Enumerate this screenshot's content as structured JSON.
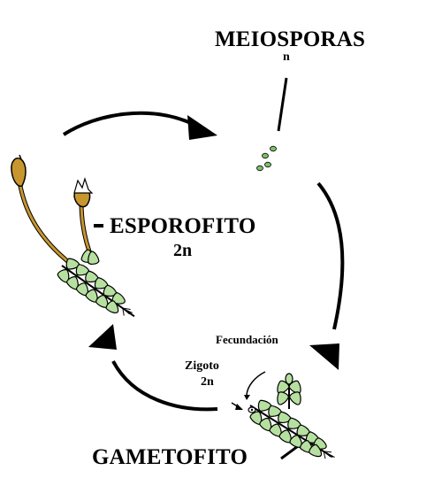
{
  "labels": {
    "meiosporas": "MEIOSPORAS",
    "meiosporas_ploidy": "n",
    "esporofito": "ESPOROFITO",
    "esporofito_ploidy": "2n",
    "fecundacion": "Fecundación",
    "zigoto": "Zigoto",
    "zigoto_ploidy": "2n",
    "gametofito": "GAMETOFITO"
  },
  "colors": {
    "ink": "#000000",
    "leaf": "#b6e0a0",
    "seta": "#c8962e",
    "spore": "#7fbf6a"
  }
}
